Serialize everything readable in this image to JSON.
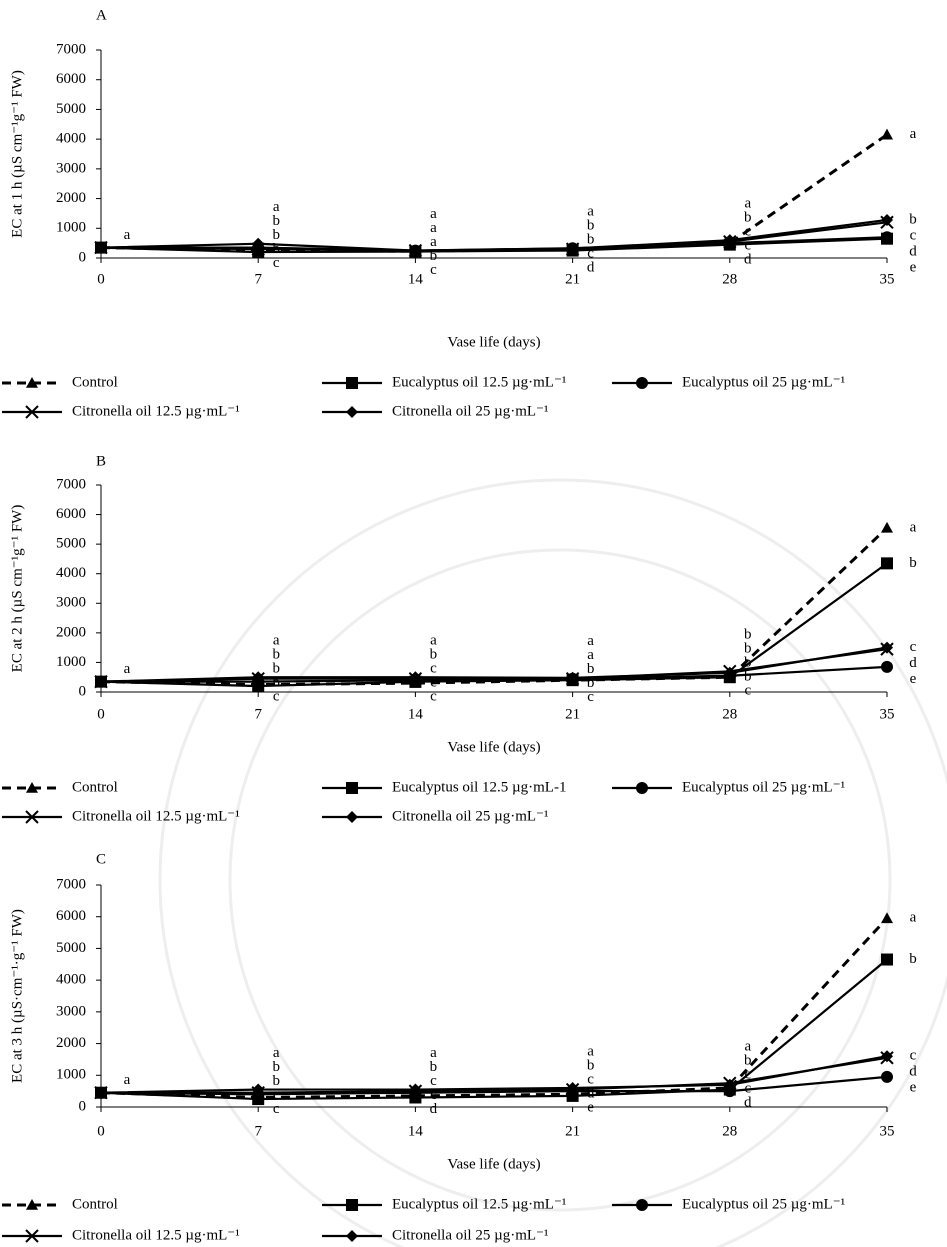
{
  "chart_data": [
    {
      "type": "line",
      "title": "A",
      "xlabel": "Vase life (days)",
      "ylabel": "EC at 1 h (µS cm⁻¹g⁻¹ FW)",
      "x": [
        0,
        7,
        14,
        21,
        28,
        35
      ],
      "xlim": [
        0,
        35
      ],
      "xticks": [
        0,
        7,
        14,
        21,
        28,
        35
      ],
      "ylim": [
        0,
        7000
      ],
      "yticks": [
        0,
        1000,
        2000,
        3000,
        4000,
        5000,
        6000,
        7000
      ],
      "series": [
        {
          "name": "Control",
          "color": "#000000",
          "marker": "triangle",
          "dashed": true,
          "values": [
            350,
            250,
            230,
            300,
            500,
            4150
          ]
        },
        {
          "name": "Eucalyptus oil 12.5 µg·mL⁻¹",
          "color": "#000000",
          "marker": "square",
          "dashed": false,
          "values": [
            350,
            200,
            220,
            250,
            450,
            650
          ]
        },
        {
          "name": "Eucalyptus oil 25 µg·mL⁻¹",
          "color": "#000000",
          "marker": "circle",
          "dashed": false,
          "values": [
            350,
            350,
            250,
            330,
            500,
            700
          ]
        },
        {
          "name": "Citronella oil 12.5 µg·mL⁻¹",
          "color": "#000000",
          "marker": "x",
          "dashed": false,
          "values": [
            350,
            300,
            250,
            300,
            550,
            1200
          ]
        },
        {
          "name": "Citronella oil 25 µg·mL⁻¹",
          "color": "#000000",
          "marker": "diamond",
          "dashed": false,
          "values": [
            350,
            480,
            250,
            320,
            600,
            1280
          ]
        }
      ],
      "letters": [
        [
          "a"
        ],
        [
          "a",
          "b",
          "b",
          "b",
          "c"
        ],
        [
          "a",
          "a",
          "a",
          "b",
          "c"
        ],
        [
          "a",
          "b",
          "b",
          "c",
          "d"
        ],
        [
          "a",
          "b",
          "c",
          "c",
          "d"
        ],
        [
          "a",
          "b",
          "c",
          "d",
          "e"
        ]
      ]
    },
    {
      "type": "line",
      "title": "B",
      "xlabel": "Vase life (days)",
      "ylabel": "EC at 2 h (µS cm⁻¹g⁻¹ FW)",
      "x": [
        0,
        7,
        14,
        21,
        28,
        35
      ],
      "xlim": [
        0,
        35
      ],
      "xticks": [
        0,
        7,
        14,
        21,
        28,
        35
      ],
      "ylim": [
        0,
        7000
      ],
      "yticks": [
        0,
        1000,
        2000,
        3000,
        4000,
        5000,
        6000,
        7000
      ],
      "series": [
        {
          "name": "Control",
          "color": "#000000",
          "marker": "triangle",
          "dashed": true,
          "values": [
            350,
            250,
            300,
            400,
            500,
            5550
          ]
        },
        {
          "name": "Eucalyptus oil 12.5 µg·mL-1",
          "color": "#000000",
          "marker": "square",
          "dashed": false,
          "values": [
            350,
            200,
            350,
            400,
            500,
            4350
          ]
        },
        {
          "name": "Eucalyptus oil 25 µg·mL⁻¹",
          "color": "#000000",
          "marker": "circle",
          "dashed": false,
          "values": [
            350,
            350,
            400,
            450,
            550,
            850
          ]
        },
        {
          "name": "Citronella oil 12.5 µg·mL⁻¹",
          "color": "#000000",
          "marker": "x",
          "dashed": false,
          "values": [
            350,
            450,
            450,
            450,
            700,
            1450
          ]
        },
        {
          "name": "Citronella oil 25 µg·mL⁻¹",
          "color": "#000000",
          "marker": "diamond",
          "dashed": false,
          "values": [
            350,
            500,
            500,
            480,
            650,
            1500
          ]
        }
      ],
      "letters": [
        [
          "a"
        ],
        [
          "a",
          "b",
          "b",
          "b",
          "c"
        ],
        [
          "a",
          "b",
          "c",
          "c",
          "c"
        ],
        [
          "a",
          "a",
          "b",
          "b",
          "c"
        ],
        [
          "b",
          "b",
          "b",
          "b",
          "c"
        ],
        [
          "a",
          "b",
          "c",
          "d",
          "e"
        ]
      ]
    },
    {
      "type": "line",
      "title": "C",
      "xlabel": "Vase life (days)",
      "ylabel": "EC at 3 h (µS·cm⁻¹·g⁻¹ FW)",
      "x": [
        0,
        7,
        14,
        21,
        28,
        35
      ],
      "xlim": [
        0,
        35
      ],
      "xticks": [
        0,
        7,
        14,
        21,
        28,
        35
      ],
      "ylim": [
        0,
        7000
      ],
      "yticks": [
        0,
        1000,
        2000,
        3000,
        4000,
        5000,
        6000,
        7000
      ],
      "series": [
        {
          "name": "Control",
          "color": "#000000",
          "marker": "triangle",
          "dashed": true,
          "values": [
            450,
            300,
            350,
            400,
            600,
            5950
          ]
        },
        {
          "name": "Eucalyptus oil 12.5 µg·mL⁻¹",
          "color": "#000000",
          "marker": "square",
          "dashed": false,
          "values": [
            450,
            250,
            300,
            350,
            550,
            4650
          ]
        },
        {
          "name": "Eucalyptus oil 25 µg·mL⁻¹",
          "color": "#000000",
          "marker": "circle",
          "dashed": false,
          "values": [
            450,
            400,
            450,
            500,
            500,
            950
          ]
        },
        {
          "name": "Citronella oil 12.5 µg·mL⁻¹",
          "color": "#000000",
          "marker": "x",
          "dashed": false,
          "values": [
            450,
            450,
            500,
            550,
            750,
            1550
          ]
        },
        {
          "name": "Citronella oil 25 µg·mL⁻¹",
          "color": "#000000",
          "marker": "diamond",
          "dashed": false,
          "values": [
            450,
            550,
            550,
            600,
            700,
            1600
          ]
        }
      ],
      "letters": [
        [
          "a"
        ],
        [
          "a",
          "b",
          "b",
          "c",
          "c"
        ],
        [
          "a",
          "b",
          "c",
          "c",
          "d"
        ],
        [
          "a",
          "b",
          "c",
          "d",
          "e"
        ],
        [
          "a",
          "b",
          "c",
          "c",
          "d"
        ],
        [
          "a",
          "b",
          "c",
          "d",
          "e"
        ]
      ]
    }
  ]
}
